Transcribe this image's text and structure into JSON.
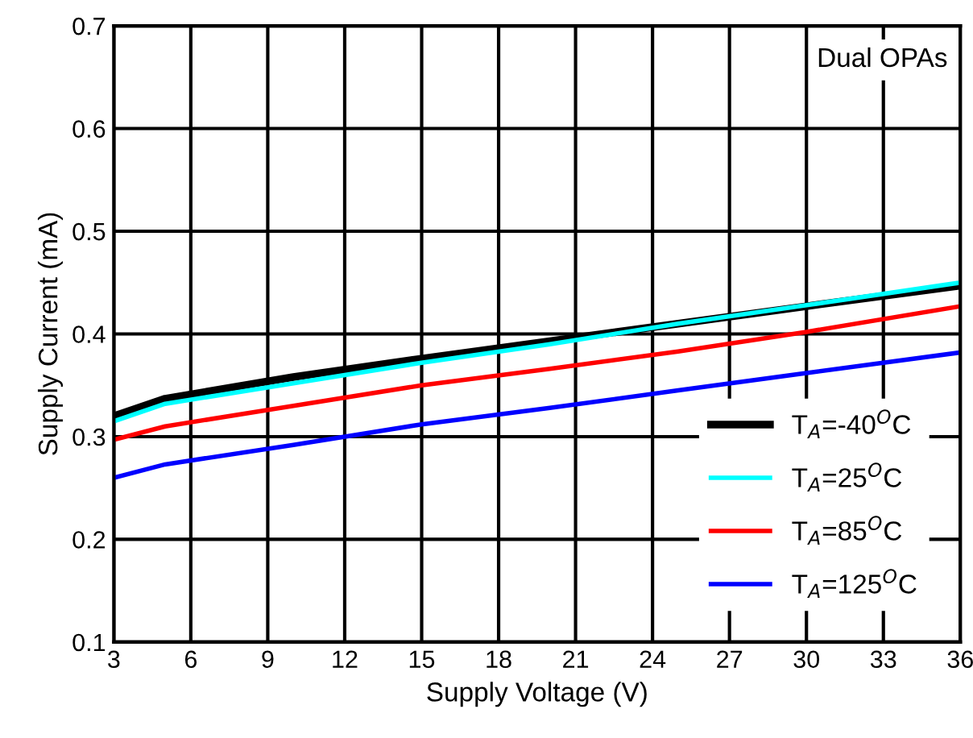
{
  "chart_data": {
    "type": "line",
    "xlabel": "Supply Voltage (V)",
    "ylabel": "Supply Current (mA)",
    "x": [
      3,
      5,
      10,
      15,
      20,
      25,
      30,
      36
    ],
    "series": [
      {
        "name": "T$_{A}$=-40$^{O}$C",
        "color": "#000000",
        "values": [
          0.32,
          0.337,
          0.358,
          0.376,
          0.393,
          0.41,
          0.427,
          0.447
        ]
      },
      {
        "name": "T$_{A}$=25$^{O}$C",
        "color": "#00ffff",
        "values": [
          0.315,
          0.332,
          0.352,
          0.372,
          0.39,
          0.41,
          0.428,
          0.45
        ]
      },
      {
        "name": "T$_{A}$=85$^{O}$C",
        "color": "#ff0000",
        "values": [
          0.297,
          0.31,
          0.33,
          0.35,
          0.366,
          0.383,
          0.402,
          0.427
        ]
      },
      {
        "name": "T$_{A}$=125$^{O}$C",
        "color": "#0000ff",
        "values": [
          0.26,
          0.273,
          0.292,
          0.312,
          0.328,
          0.345,
          0.362,
          0.382
        ]
      }
    ],
    "xlim": [
      3,
      36
    ],
    "xticks": [
      3,
      6,
      9,
      12,
      15,
      18,
      21,
      24,
      27,
      30,
      33,
      36
    ],
    "ylim": [
      0.1,
      0.7
    ],
    "yticks": [
      0.1,
      0.2,
      0.3,
      0.4,
      0.5,
      0.6,
      0.7
    ],
    "grid": true,
    "legend": "bottom right",
    "marker": "none",
    "line_style": "solid",
    "annotations": [
      "Dual OPAs"
    ]
  }
}
